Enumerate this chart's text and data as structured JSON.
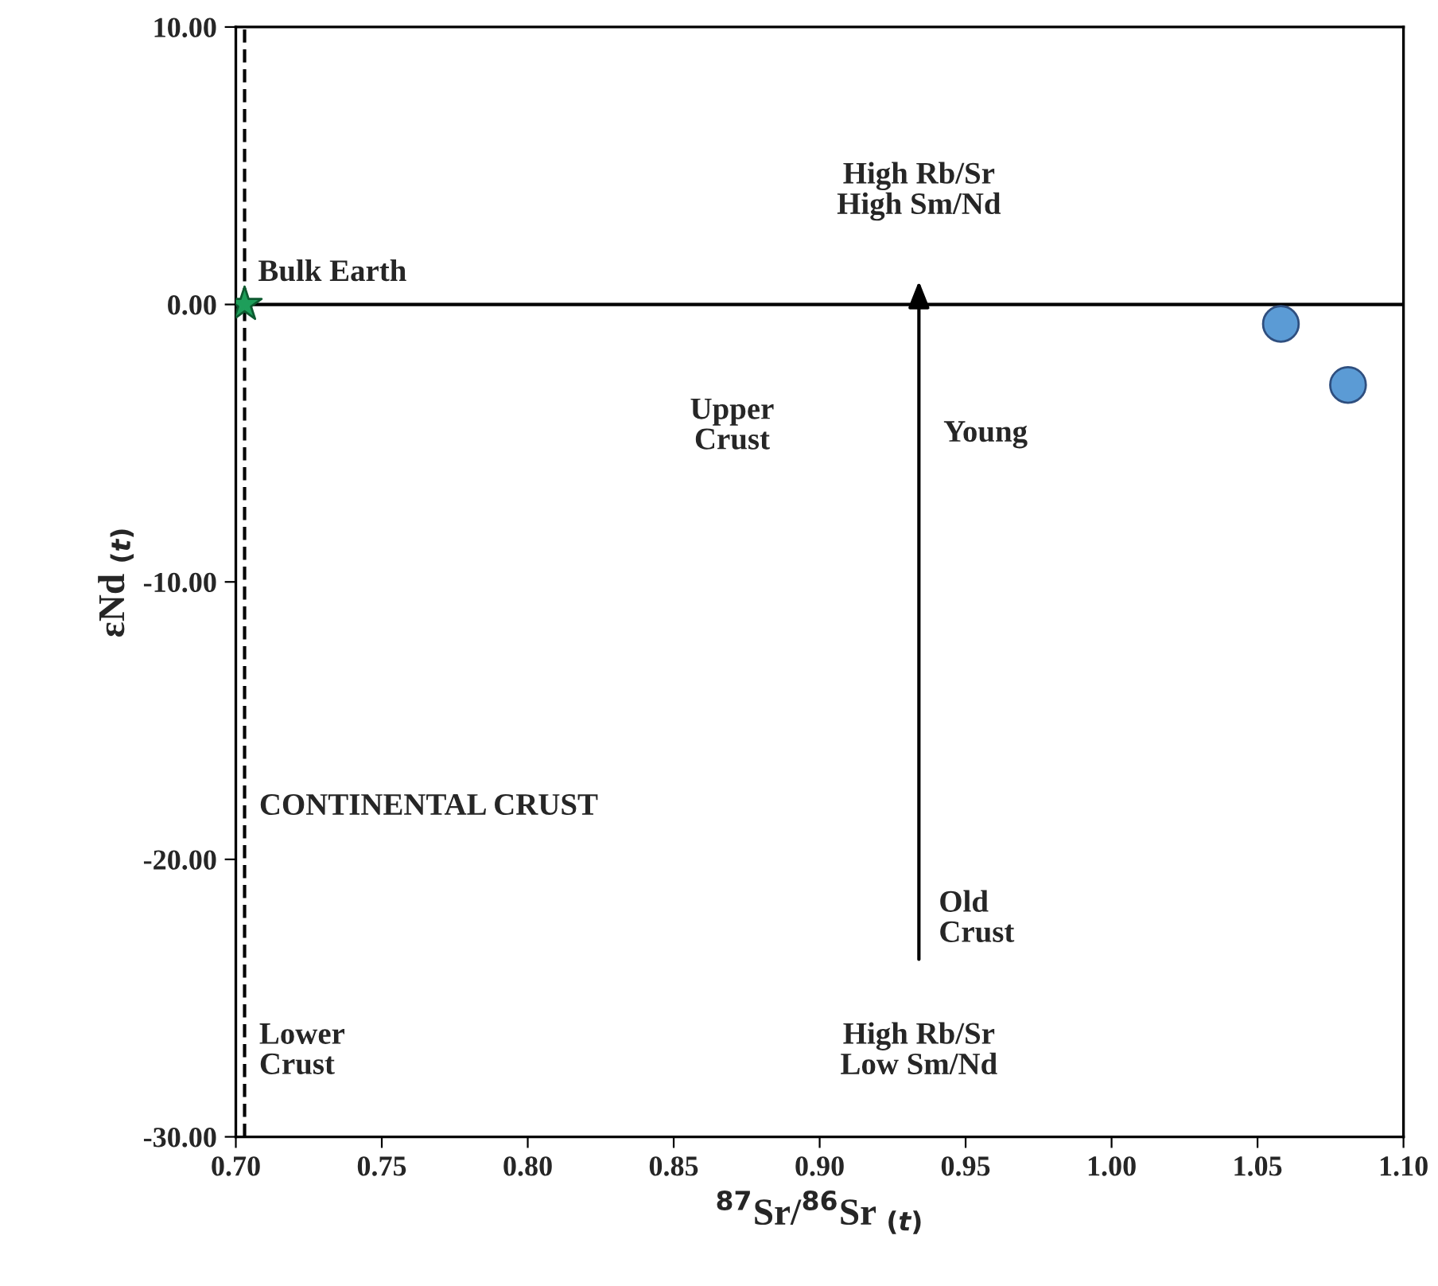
{
  "chart_data": {
    "type": "scatter",
    "xlabel": "$^{87}$Sr/$^{86}$Sr $_{(t)}$",
    "ylabel": "εNd $_{(t)}$",
    "series": [
      {
        "color": "#5b9bd5",
        "marker": "circle",
        "x": [
          1.058,
          1.081
        ],
        "values": [
          -0.7,
          -2.9
        ]
      },
      {
        "color": "#1e9e5a",
        "marker": "star",
        "x": [
          0.703
        ],
        "values": [
          0.0
        ]
      }
    ],
    "xlim": [
      0.7,
      1.1
    ],
    "ylim": [
      -30,
      10
    ],
    "xticks": [
      {
        "value": 0.7,
        "label": "0.70"
      },
      {
        "value": 0.75,
        "label": "0.75"
      },
      {
        "value": 0.8,
        "label": "0.80"
      },
      {
        "value": 0.85,
        "label": "0.85"
      },
      {
        "value": 0.9,
        "label": "0.90"
      },
      {
        "value": 0.95,
        "label": "0.95"
      },
      {
        "value": 1.0,
        "label": "1.00"
      },
      {
        "value": 1.05,
        "label": "1.05"
      },
      {
        "value": 1.1,
        "label": "1.10"
      }
    ],
    "yticks": [
      {
        "value": -30,
        "label": "-30.00"
      },
      {
        "value": -20,
        "label": "-20.00"
      },
      {
        "value": -10,
        "label": "-10.00"
      },
      {
        "value": 0,
        "label": "0.00"
      },
      {
        "value": 10,
        "label": "10.00"
      }
    ],
    "ref_lines": [
      {
        "axis": "y",
        "value": 0,
        "color": "#000000",
        "line_style": "solid"
      },
      {
        "axis": "x",
        "value": 0.703,
        "color": "#000000",
        "line_style": "dashed"
      }
    ],
    "annotations": [
      "High Rb/Sr\nHigh Sm/Nd",
      "Bulk Earth",
      "Upper\nCrust",
      "Young",
      "CONTINENTAL CRUST",
      "Old\nCrust",
      "Lower\nCrust",
      "High Rb/Sr\nLow Sm/Nd"
    ],
    "grid": false,
    "legend": false
  }
}
